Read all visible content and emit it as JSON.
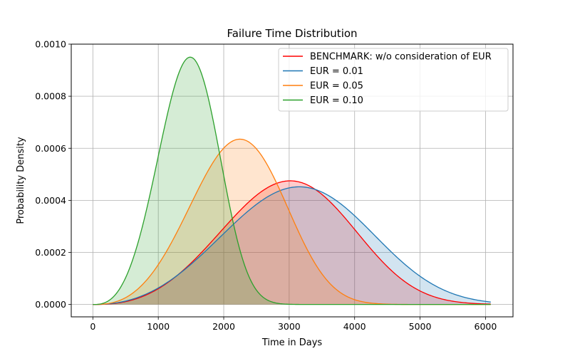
{
  "chart_data": {
    "type": "area",
    "title": "Failure Time Distribution",
    "xlabel": "Time in Days",
    "ylabel": "Probability Density",
    "xlim": [
      -330,
      6420
    ],
    "ylim": [
      -4.75e-05,
      0.001
    ],
    "xticks": [
      0,
      1000,
      2000,
      3000,
      4000,
      5000,
      6000
    ],
    "xtick_labels": [
      "0",
      "1000",
      "2000",
      "3000",
      "4000",
      "5000",
      "6000"
    ],
    "yticks": [
      0,
      0.0002,
      0.0004,
      0.0006,
      0.0008,
      0.001
    ],
    "ytick_labels": [
      "0.0000",
      "0.0002",
      "0.0004",
      "0.0006",
      "0.0008",
      "0.0010"
    ],
    "grid": true,
    "legend_position": "top-right",
    "x_range": [
      0,
      6080
    ],
    "distribution": "weibull",
    "series": [
      {
        "name": "BENCHMARK: w/o consideration of EUR",
        "color": "#ff0000",
        "fill": "#ff0000",
        "fill_opacity": 0.2,
        "shape": 3.5,
        "scale": 3320,
        "peak": {
          "x": 2970,
          "y": 0.000475
        }
      },
      {
        "name": "EUR = 0.01",
        "color": "#1f77b4",
        "fill": "#1f77b4",
        "fill_opacity": 0.2,
        "shape": 3.3,
        "scale": 3520,
        "peak": {
          "x": 3120,
          "y": 0.000452
        }
      },
      {
        "name": "EUR = 0.05",
        "color": "#ff7f0e",
        "fill": "#ff7f0e",
        "fill_opacity": 0.2,
        "shape": 3.6,
        "scale": 2460,
        "peak": {
          "x": 2230,
          "y": 0.000635
        }
      },
      {
        "name": "EUR = 0.10",
        "color": "#2ca02c",
        "fill": "#2ca02c",
        "fill_opacity": 0.2,
        "shape": 3.7,
        "scale": 1620,
        "peak": {
          "x": 1480,
          "y": 0.00095
        }
      }
    ]
  }
}
